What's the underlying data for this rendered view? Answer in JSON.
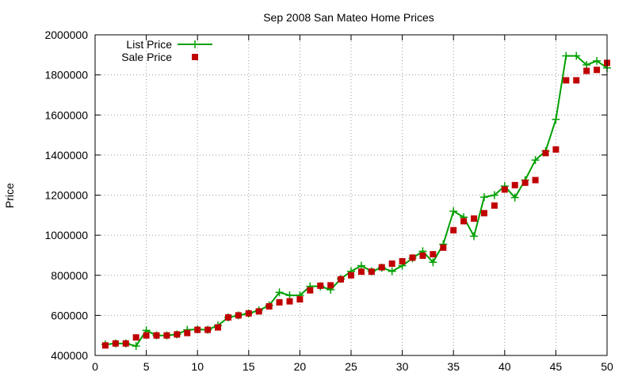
{
  "chart_data": {
    "type": "line",
    "title": "Sep 2008 San Mateo Home Prices",
    "xlabel": "",
    "ylabel": "Price",
    "xlim": [
      0,
      50
    ],
    "ylim": [
      400000,
      2000000
    ],
    "x_ticks": [
      0,
      5,
      10,
      15,
      20,
      25,
      30,
      35,
      40,
      45,
      50
    ],
    "y_ticks": [
      400000,
      600000,
      800000,
      1000000,
      1200000,
      1400000,
      1600000,
      1800000,
      2000000
    ],
    "grid": true,
    "legend_position": "top-left",
    "x": [
      1,
      2,
      3,
      4,
      5,
      6,
      7,
      8,
      9,
      10,
      11,
      12,
      13,
      14,
      15,
      16,
      17,
      18,
      19,
      20,
      21,
      22,
      23,
      24,
      25,
      26,
      27,
      28,
      29,
      30,
      31,
      32,
      33,
      34,
      35,
      36,
      37,
      38,
      39,
      40,
      41,
      42,
      43,
      44,
      45,
      46,
      47,
      48,
      49,
      50
    ],
    "series": [
      {
        "name": "List Price",
        "style": "line+cross",
        "color": "#00a000",
        "values": [
          455000,
          460000,
          460000,
          447000,
          525000,
          500000,
          500000,
          505000,
          528000,
          530000,
          528000,
          550000,
          590000,
          600000,
          610000,
          625000,
          650000,
          715000,
          700000,
          700000,
          745000,
          745000,
          728000,
          782000,
          820000,
          848000,
          820000,
          838000,
          820000,
          848000,
          885000,
          920000,
          865000,
          955000,
          1120000,
          1090000,
          995000,
          1190000,
          1200000,
          1245000,
          1188000,
          1275000,
          1375000,
          1420000,
          1578000,
          1895000,
          1895000,
          1850000,
          1870000,
          1835000
        ]
      },
      {
        "name": "Sale Price",
        "style": "square",
        "color": "#c00000",
        "values": [
          450000,
          460000,
          460000,
          490000,
          500000,
          500000,
          500000,
          505000,
          512000,
          528000,
          528000,
          540000,
          590000,
          600000,
          610000,
          620000,
          645000,
          665000,
          670000,
          680000,
          725000,
          748000,
          750000,
          780000,
          800000,
          818000,
          818000,
          840000,
          858000,
          870000,
          888000,
          898000,
          905000,
          938000,
          1025000,
          1070000,
          1083000,
          1110000,
          1148000,
          1228000,
          1250000,
          1262000,
          1275000,
          1410000,
          1428000,
          1773000,
          1773000,
          1820000,
          1825000,
          1860000
        ]
      }
    ]
  }
}
